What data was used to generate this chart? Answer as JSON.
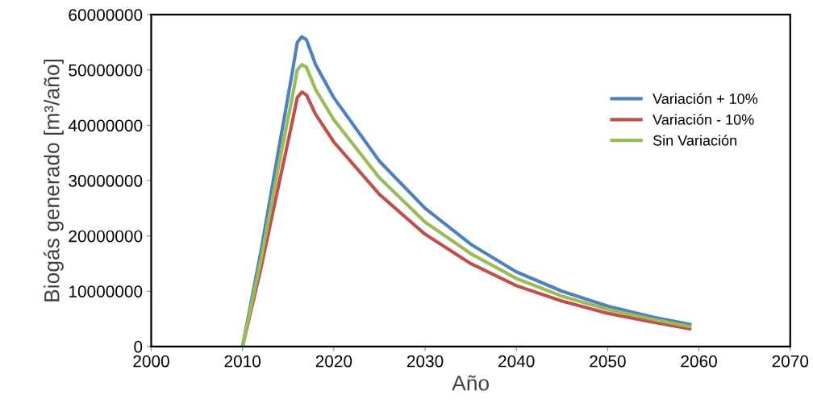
{
  "chart_data": {
    "type": "line",
    "xlabel": "Año",
    "ylabel": "Biogás generado [m³/año]",
    "x": [
      2010,
      2012,
      2014,
      2015.5,
      2016,
      2016.5,
      2017,
      2018,
      2020,
      2025,
      2030,
      2035,
      2040,
      2045,
      2050,
      2055,
      2059
    ],
    "series": [
      {
        "name": "Variación + 10%",
        "color": "#4f81bd",
        "values": [
          0,
          17000000,
          36000000,
          50000000,
          55000000,
          56000000,
          55500000,
          51000000,
          45000000,
          33500000,
          25000000,
          18500000,
          13500000,
          10000000,
          7300000,
          5300000,
          4000000
        ]
      },
      {
        "name": "Variación - 10%",
        "color": "#c0504d",
        "values": [
          0,
          14000000,
          29500000,
          41000000,
          45000000,
          46000000,
          45500000,
          42000000,
          37000000,
          27500000,
          20300000,
          15000000,
          11000000,
          8200000,
          6000000,
          4400000,
          3200000
        ]
      },
      {
        "name": "Sin Variación",
        "color": "#9bbb59",
        "values": [
          0,
          15500000,
          33000000,
          45500000,
          50000000,
          51000000,
          50500000,
          46500000,
          41000000,
          30500000,
          22500000,
          16800000,
          12300000,
          9100000,
          6700000,
          4900000,
          3600000
        ]
      }
    ],
    "xlim": [
      2000,
      2070
    ],
    "xticks": [
      2000,
      2010,
      2020,
      2030,
      2040,
      2050,
      2060,
      2070
    ],
    "ylim": [
      0,
      60000000
    ],
    "yticks": [
      0,
      10000000,
      20000000,
      30000000,
      40000000,
      50000000,
      60000000
    ],
    "grid": false,
    "legend": "right",
    "marker": "none",
    "line_style": "solid"
  }
}
